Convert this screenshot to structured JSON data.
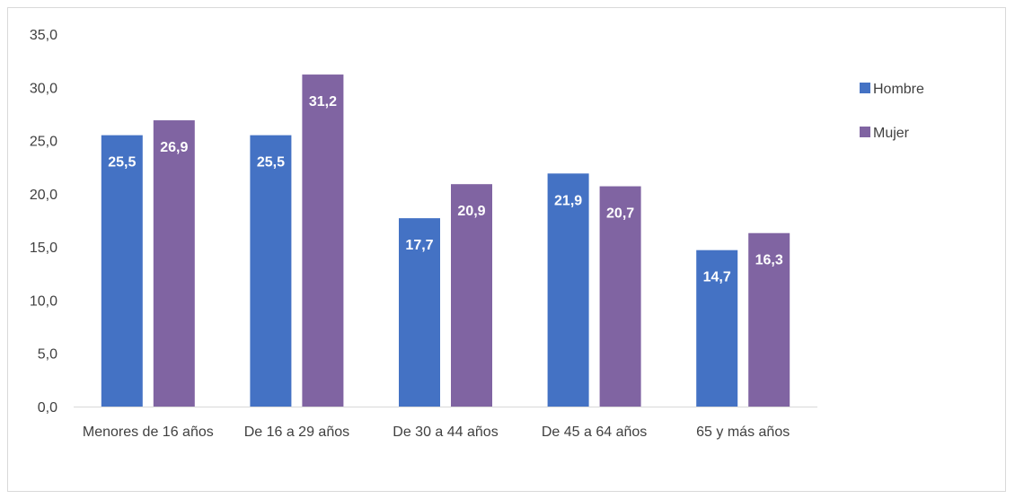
{
  "colors": {
    "hombre": "#4472c4",
    "mujer": "#8064a2",
    "axis": "#d9d9d9",
    "text": "#404040"
  },
  "chart_data": {
    "type": "bar",
    "title": "",
    "xlabel": "",
    "ylabel": "",
    "categories": [
      "Menores de 16 años",
      "De 16 a 29 años",
      "De 30 a 44 años",
      "De 45 a 64 años",
      "65 y más años"
    ],
    "series": [
      {
        "name": "Hombre",
        "values": [
          25.5,
          25.5,
          17.7,
          21.9,
          14.7
        ],
        "labels": [
          "25,5",
          "25,5",
          "17,7",
          "21,9",
          "14,7"
        ]
      },
      {
        "name": "Mujer",
        "values": [
          26.9,
          31.2,
          20.9,
          20.7,
          16.3
        ],
        "labels": [
          "26,9",
          "31,2",
          "20,9",
          "20,7",
          "16,3"
        ]
      }
    ],
    "ylim": [
      0,
      35
    ],
    "yticks": [
      0,
      5,
      10,
      15,
      20,
      25,
      30,
      35
    ],
    "ytick_labels": [
      "0,0",
      "5,0",
      "10,0",
      "15,0",
      "20,0",
      "25,0",
      "30,0",
      "35,0"
    ],
    "grid": false,
    "legend": {
      "position": "right",
      "entries": [
        "Hombre",
        "Mujer"
      ]
    }
  }
}
